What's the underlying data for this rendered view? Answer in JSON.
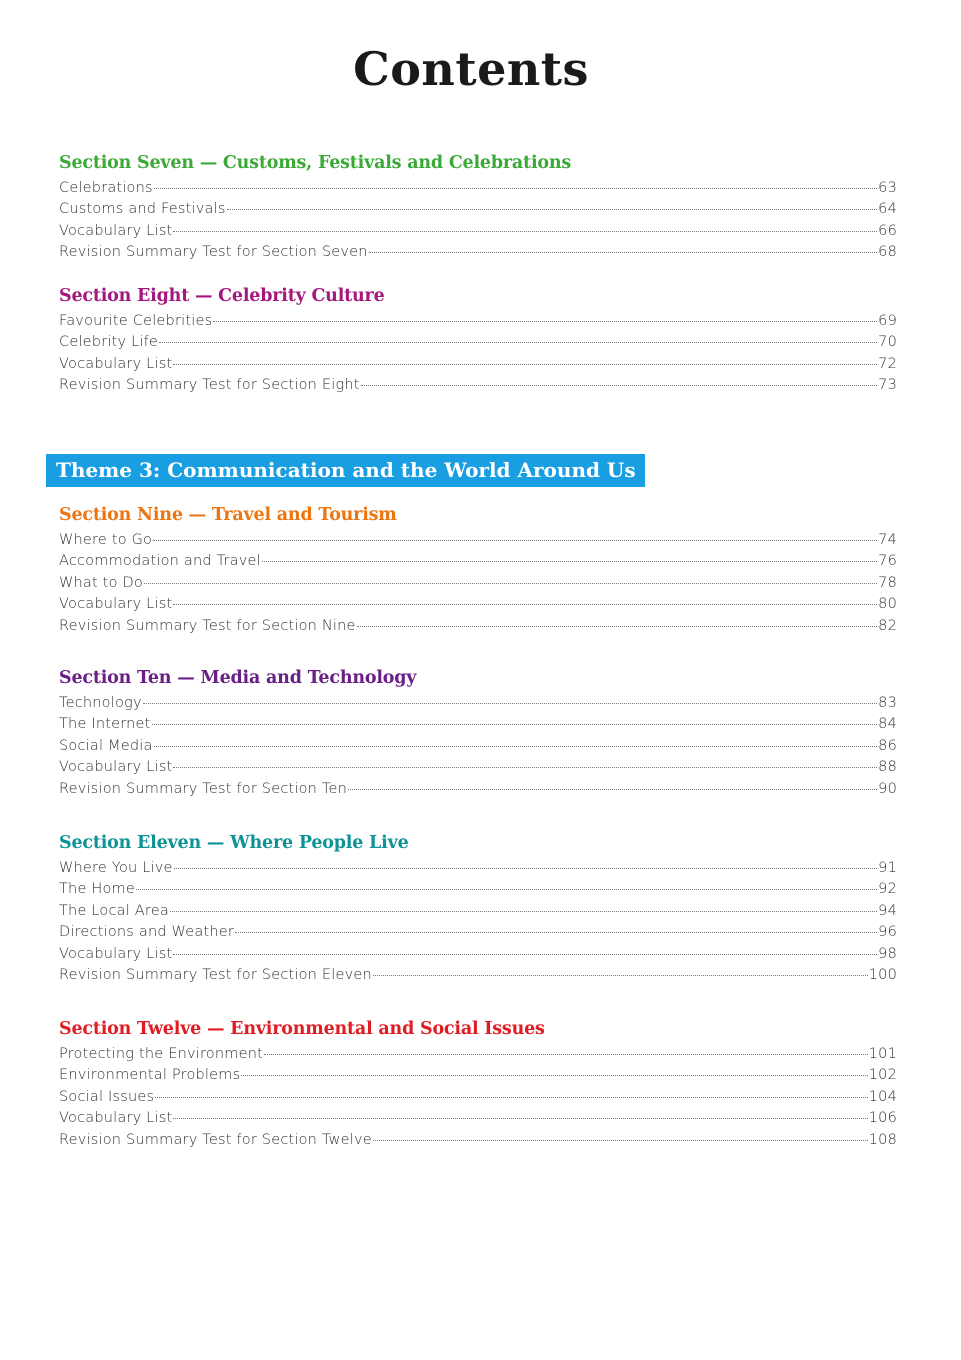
{
  "title": "Contents",
  "theme": {
    "label": "Theme 3: Communication and the World Around Us",
    "color": "#1a9ee2"
  },
  "sections": [
    {
      "heading": "Section Seven — Customs, Festivals and Celebrations",
      "color": "#3aa935",
      "entries": [
        {
          "title": "Celebrations",
          "page": "63"
        },
        {
          "title": "Customs and Festivals",
          "page": "64"
        },
        {
          "title": "Vocabulary List",
          "page": "66"
        },
        {
          "title": "Revision Summary Test for Section Seven",
          "page": "68"
        }
      ]
    },
    {
      "heading": "Section Eight — Celebrity Culture",
      "color": "#a3177f",
      "entries": [
        {
          "title": "Favourite Celebrities",
          "page": "69"
        },
        {
          "title": "Celebrity Life",
          "page": "70"
        },
        {
          "title": "Vocabulary List",
          "page": "72"
        },
        {
          "title": "Revision Summary Test for Section Eight",
          "page": "73"
        }
      ]
    },
    {
      "heading": "Section Nine — Travel and Tourism",
      "color": "#ee7410",
      "entries": [
        {
          "title": "Where to Go",
          "page": "74"
        },
        {
          "title": "Accommodation and Travel",
          "page": "76"
        },
        {
          "title": "What to Do",
          "page": "78"
        },
        {
          "title": "Vocabulary List",
          "page": "80"
        },
        {
          "title": "Revision Summary Test for Section Nine",
          "page": "82"
        }
      ]
    },
    {
      "heading": "Section Ten — Media and Technology",
      "color": "#6a1f87",
      "entries": [
        {
          "title": "Technology",
          "page": "83"
        },
        {
          "title": "The Internet",
          "page": "84"
        },
        {
          "title": "Social Media",
          "page": "86"
        },
        {
          "title": "Vocabulary List",
          "page": "88"
        },
        {
          "title": "Revision Summary Test for Section Ten",
          "page": "90"
        }
      ]
    },
    {
      "heading": "Section Eleven — Where People Live",
      "color": "#0d9395",
      "entries": [
        {
          "title": "Where You Live",
          "page": "91"
        },
        {
          "title": "The Home",
          "page": "92"
        },
        {
          "title": "The Local Area",
          "page": "94"
        },
        {
          "title": "Directions and Weather",
          "page": "96"
        },
        {
          "title": "Vocabulary List",
          "page": "98"
        },
        {
          "title": "Revision Summary Test for Section Eleven",
          "page": "100"
        }
      ]
    },
    {
      "heading": "Section Twelve — Environmental and Social Issues",
      "color": "#e01b22",
      "entries": [
        {
          "title": "Protecting the Environment",
          "page": "101"
        },
        {
          "title": "Environmental Problems",
          "page": "102"
        },
        {
          "title": "Social Issues",
          "page": "104"
        },
        {
          "title": "Vocabulary List",
          "page": "106"
        },
        {
          "title": "Revision Summary Test for Section Twelve",
          "page": "108"
        }
      ]
    }
  ]
}
